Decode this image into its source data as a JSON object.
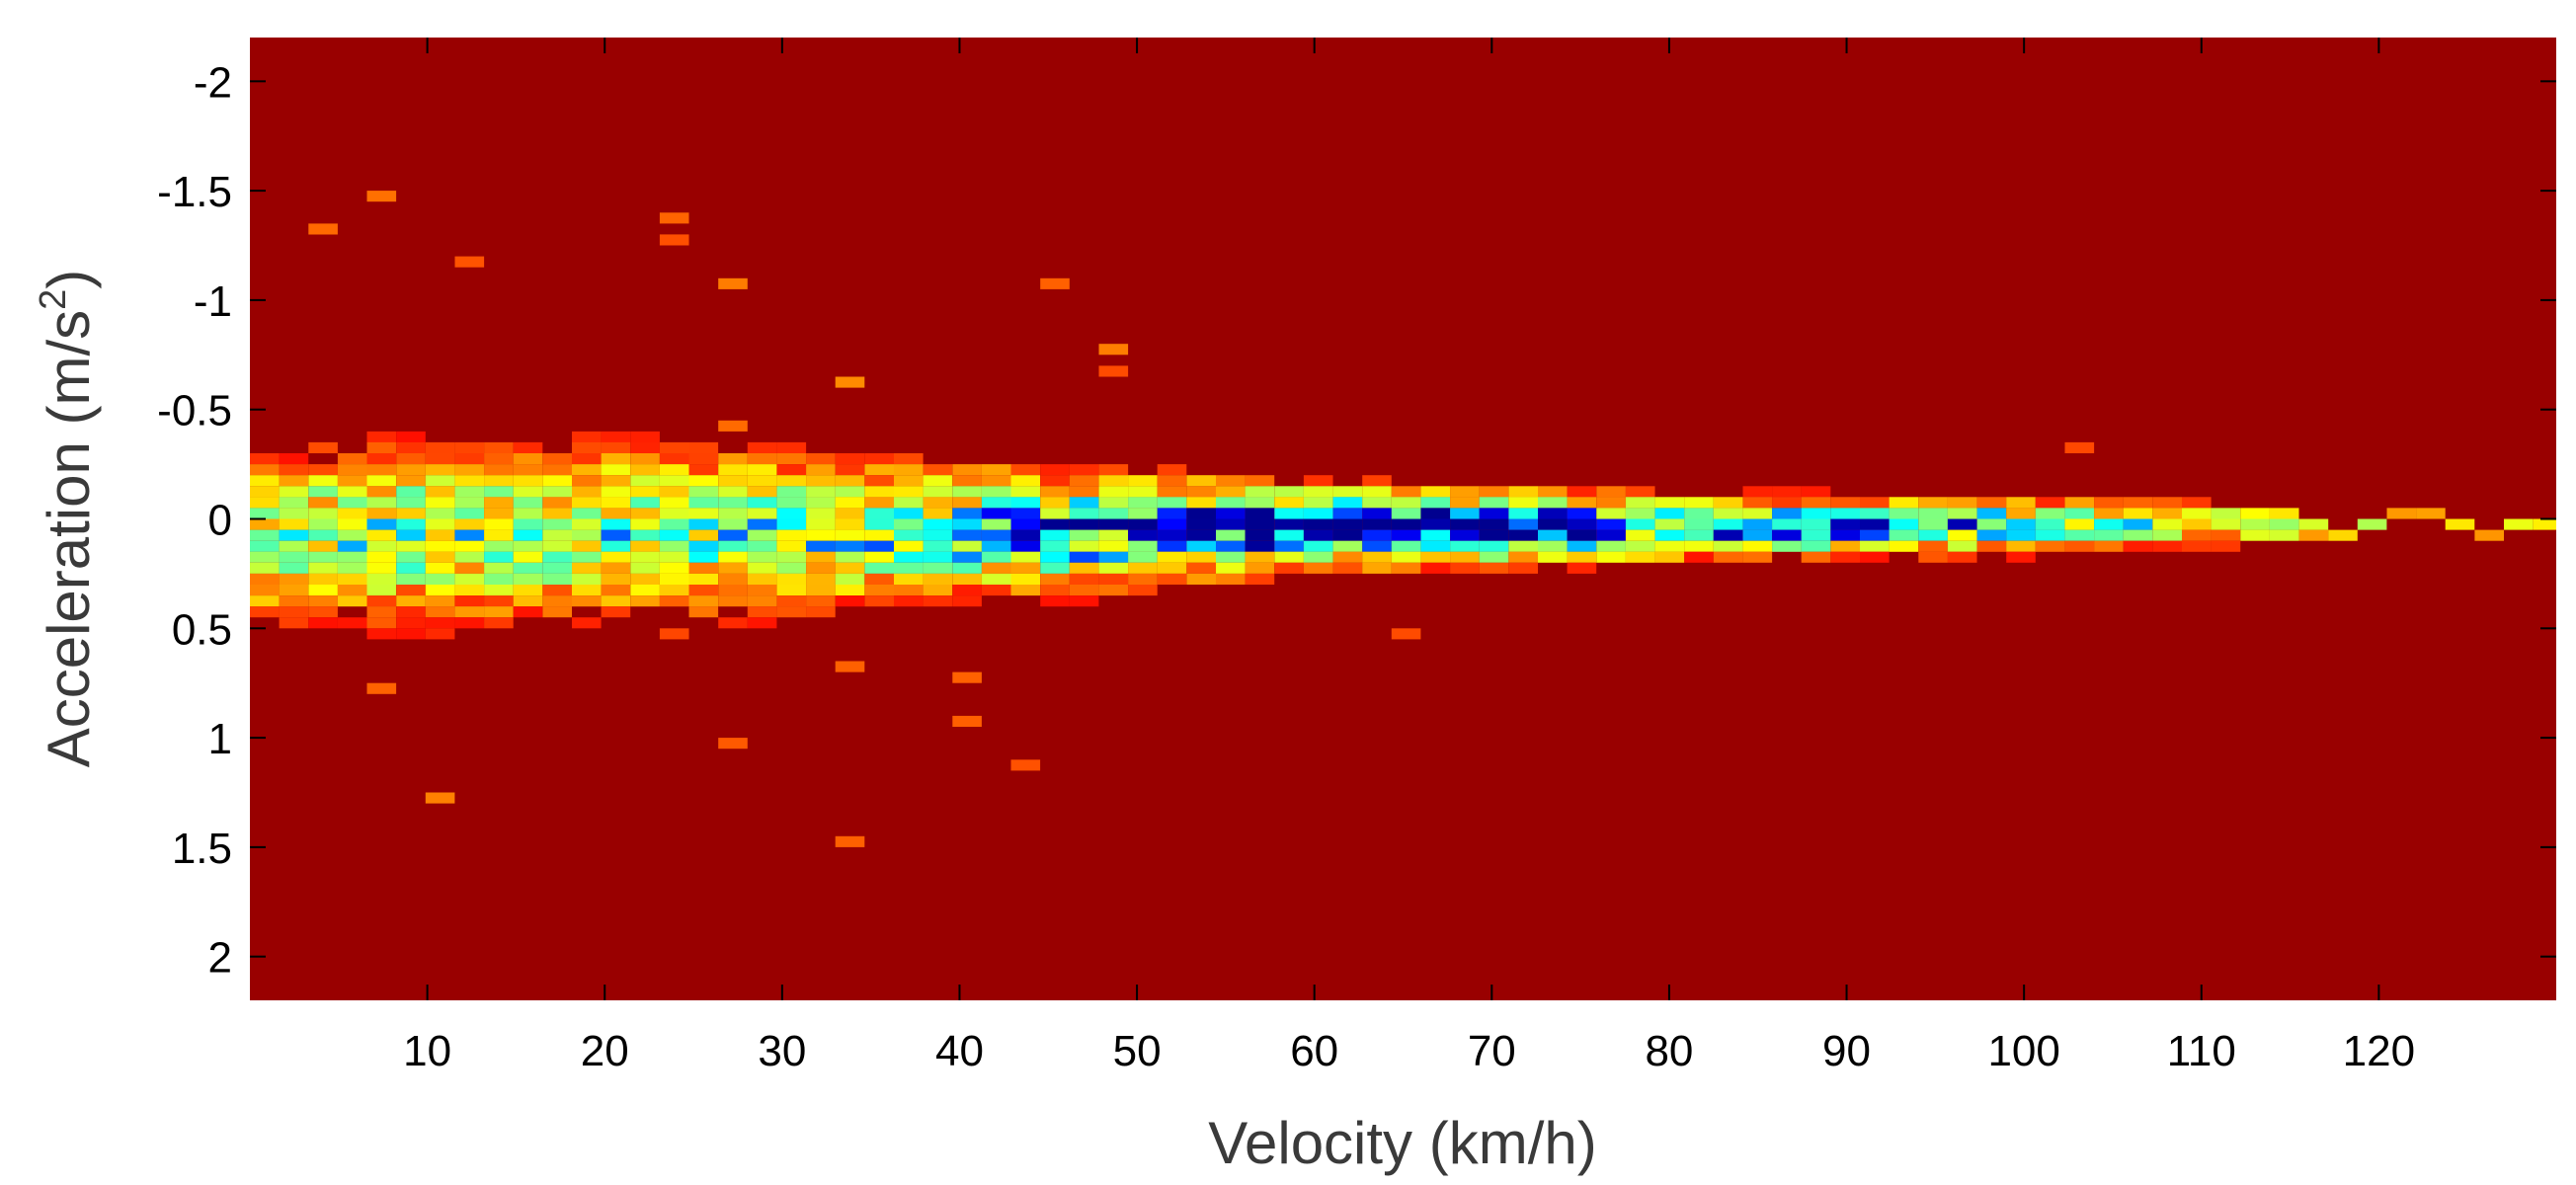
{
  "chart_data": {
    "type": "heatmap",
    "title": "",
    "xlabel": "Velocity (km/h)",
    "ylabel": "Acceleration (m/s",
    "ylabel_superscript": "2",
    "ylabel_suffix": ")",
    "xlim": [
      0,
      130
    ],
    "ylim": [
      -2.2,
      2.2
    ],
    "y_reversed": true,
    "grid": false,
    "x_ticks": [
      10,
      20,
      30,
      40,
      50,
      60,
      70,
      80,
      90,
      100,
      110,
      120
    ],
    "x_tick_labels": [
      "10",
      "20",
      "30",
      "40",
      "50",
      "60",
      "70",
      "80",
      "90",
      "100",
      "110",
      "120"
    ],
    "y_ticks": [
      -2,
      -1.5,
      -1,
      -0.5,
      0,
      0.5,
      1,
      1.5,
      2
    ],
    "y_tick_labels": [
      "-2",
      "-1.5",
      "-1",
      "-0.5",
      "0",
      "0.5",
      "1",
      "1.5",
      "2"
    ],
    "colormap": [
      "#00008f",
      "#0000ff",
      "#00ffff",
      "#7fff7f",
      "#ffff00",
      "#ff7f00",
      "#ff0000",
      "#990000"
    ],
    "background_color": "#990000",
    "bin_width_x": 1.65,
    "bin_height_y": 0.05,
    "density_profile": {
      "velocity": [
        0,
        10,
        20,
        30,
        40,
        50,
        60,
        70,
        80,
        90,
        100,
        110,
        120,
        130
      ],
      "center_acceleration": [
        0.08,
        0.07,
        0.06,
        0.06,
        0.06,
        0.05,
        0.04,
        0.04,
        0.04,
        0.04,
        0.03,
        0.03,
        0.03,
        0.03
      ],
      "spread": [
        0.32,
        0.34,
        0.33,
        0.3,
        0.26,
        0.2,
        0.15,
        0.14,
        0.12,
        0.11,
        0.1,
        0.09,
        0.08,
        0.08
      ],
      "peak_intensity": [
        0.6,
        0.62,
        0.62,
        0.64,
        0.7,
        0.88,
        1.0,
        0.97,
        0.8,
        0.78,
        0.75,
        0.55,
        0.4,
        0.35
      ],
      "support_velocity": [
        0,
        112
      ],
      "sparse_tail_velocity": [
        112,
        130
      ]
    }
  }
}
